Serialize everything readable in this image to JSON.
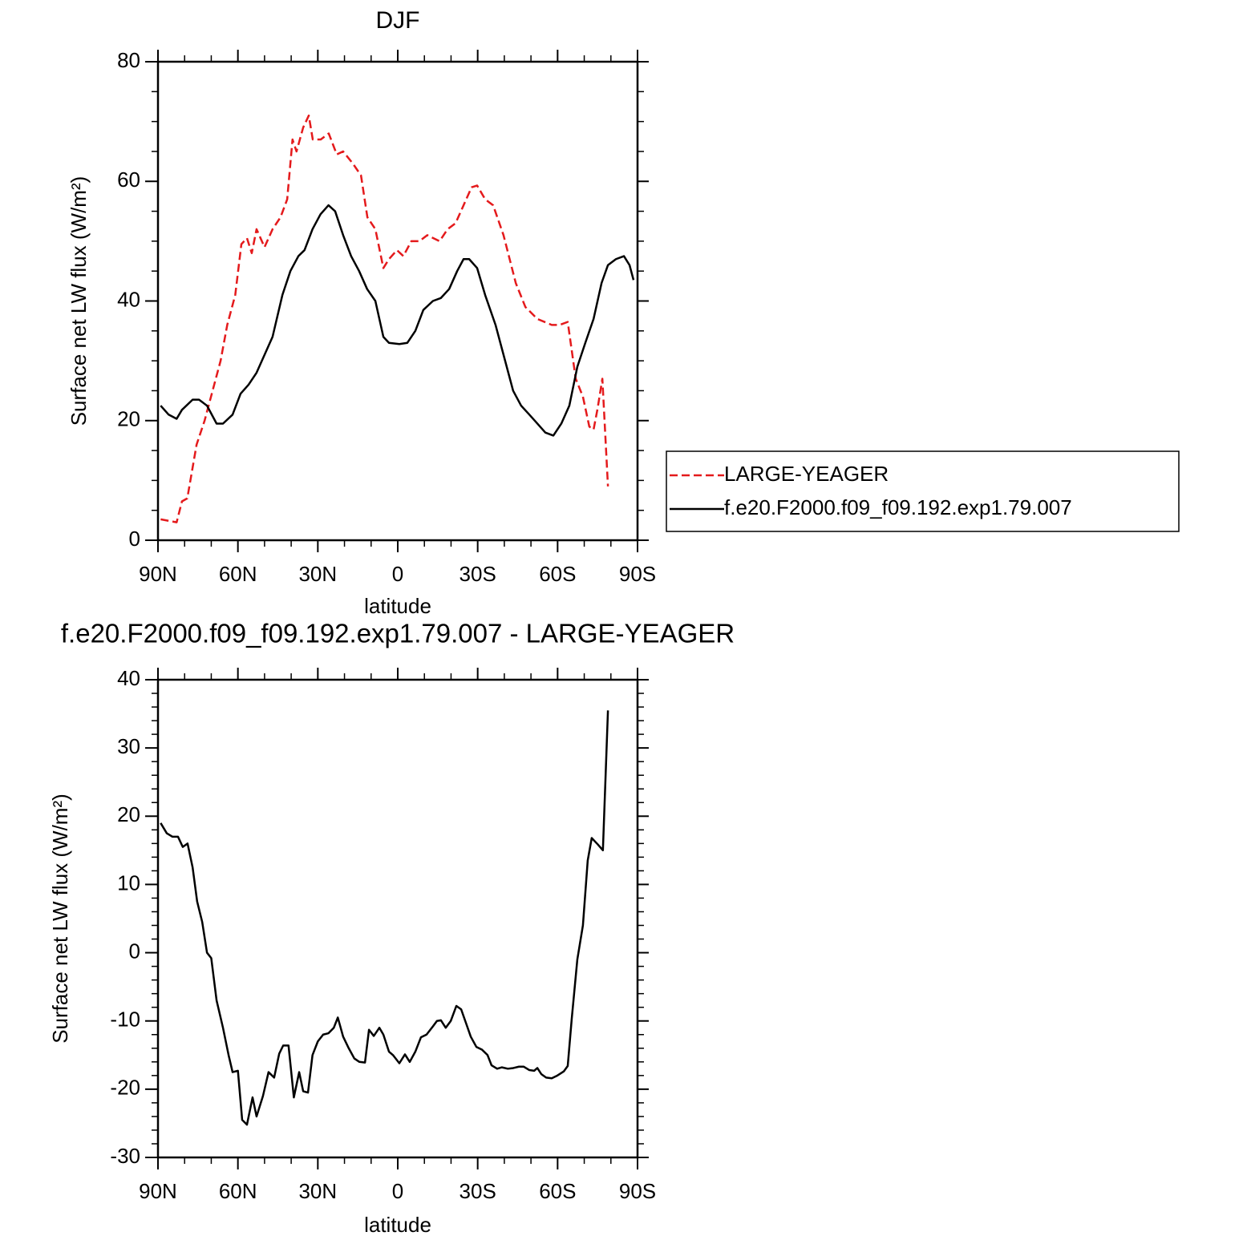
{
  "chart_data": [
    {
      "type": "line",
      "title": "DJF",
      "xlabel": "latitude",
      "ylabel": "Surface net LW flux (W/m²)",
      "xlim": [
        90,
        -90
      ],
      "xticks": [
        {
          "value": 90,
          "label": "90N"
        },
        {
          "value": 60,
          "label": "60N"
        },
        {
          "value": 30,
          "label": "30N"
        },
        0,
        {
          "value": -30,
          "label": "30S"
        },
        {
          "value": -60,
          "label": "60S"
        },
        {
          "value": -90,
          "label": "90S"
        }
      ],
      "ylim": [
        0,
        80
      ],
      "yticks": [
        0,
        20,
        40,
        60,
        80
      ],
      "legend": "right",
      "series": [
        {
          "name": "LARGE-YEAGER",
          "color": "#e41a1c",
          "dash": true,
          "x": [
            89,
            83,
            81,
            79,
            75.5,
            72.5,
            69.5,
            66.5,
            64,
            61,
            58.7,
            56.6,
            54.8,
            53,
            50,
            47,
            44,
            41.5,
            39.5,
            38,
            35.5,
            33.4,
            31.9,
            28.9,
            25.9,
            22.9,
            20.5,
            16.9,
            13.8,
            11.4,
            8.4,
            5.4,
            3.3,
            0.3,
            -2.1,
            -5.1,
            -8.1,
            -11.1,
            -15.7,
            -18.7,
            -21.7,
            -24.7,
            -27.7,
            -29.8,
            -32.8,
            -35.8,
            -39.7,
            -44.3,
            -47.9,
            -52.4,
            -57.8,
            -60.8,
            -63.8,
            -66.8,
            -69.5,
            -71.9,
            -73.5,
            -75,
            -76.8,
            -78.9
          ],
          "values": [
            3.5,
            3,
            6.5,
            7,
            16,
            20,
            25,
            30,
            36,
            41,
            49.5,
            50.5,
            48,
            52,
            49,
            52,
            54,
            57,
            67,
            65,
            69,
            71,
            67,
            67,
            68,
            64.5,
            65,
            63,
            61,
            54,
            52,
            45.5,
            47,
            48.5,
            47.5,
            50,
            50,
            51,
            50,
            52,
            53,
            56,
            59,
            59.3,
            57,
            56,
            51,
            43,
            39,
            37,
            36,
            36,
            36.5,
            27,
            24,
            19,
            18.5,
            22,
            27,
            9
          ]
        },
        {
          "name": "f.e20.F2000.f09_f09.192.exp1.79.007",
          "color": "#000000",
          "dash": false,
          "x": [
            89,
            86,
            83,
            81,
            77,
            74.6,
            71.6,
            68,
            65.6,
            62,
            59,
            56,
            53,
            50,
            47,
            43.3,
            40.3,
            37.3,
            35,
            32,
            29,
            26,
            23.5,
            20.5,
            17.5,
            14.5,
            11.5,
            8.4,
            5.4,
            3.3,
            -0.6,
            -3.6,
            -6.6,
            -9.6,
            -13.2,
            -16.2,
            -19.3,
            -22.3,
            -24.7,
            -26.8,
            -29.8,
            -32.8,
            -36.7,
            -40.3,
            -43.3,
            -46.3,
            -49.4,
            -52.4,
            -55.4,
            -58.4,
            -61.4,
            -64.4,
            -67.4,
            -70.4,
            -73.5,
            -76.5,
            -78.9,
            -81.9,
            -84.9,
            -87,
            -88.5
          ],
          "values": [
            22.5,
            21,
            20.3,
            21.8,
            23.5,
            23.5,
            22.5,
            19.5,
            19.5,
            21,
            24.5,
            26,
            28,
            31,
            34,
            41,
            45,
            47.5,
            48.5,
            52,
            54.5,
            56,
            55,
            51,
            47.5,
            45,
            42,
            40,
            34,
            33,
            32.8,
            33,
            35,
            38.5,
            40,
            40.5,
            42,
            45,
            47,
            47,
            45.5,
            41,
            36,
            30,
            25,
            22.5,
            21,
            19.5,
            18,
            17.5,
            19.5,
            22.5,
            29,
            33,
            37,
            43,
            46,
            47,
            47.5,
            46,
            43.5
          ]
        }
      ]
    },
    {
      "type": "line",
      "title": "f.e20.F2000.f09_f09.192.exp1.79.007 - LARGE-YEAGER",
      "xlabel": "latitude",
      "ylabel": "Surface net LW flux (W/m²)",
      "xlim": [
        90,
        -90
      ],
      "xticks": [
        {
          "value": 90,
          "label": "90N"
        },
        {
          "value": 60,
          "label": "60N"
        },
        {
          "value": 30,
          "label": "30N"
        },
        0,
        {
          "value": -30,
          "label": "30S"
        },
        {
          "value": -60,
          "label": "60S"
        },
        {
          "value": -90,
          "label": "90S"
        }
      ],
      "ylim": [
        -30,
        40
      ],
      "yticks": [
        -30,
        -20,
        -10,
        0,
        10,
        20,
        30,
        40
      ],
      "series": [
        {
          "color": "#000000",
          "dash": false,
          "x": [
            89,
            86.7,
            84.6,
            82.5,
            80.7,
            78.9,
            77,
            75.3,
            73.4,
            71.6,
            70,
            68,
            65.6,
            63.5,
            62,
            60,
            58.4,
            56.6,
            54.5,
            53,
            50.6,
            48.5,
            46.4,
            44.5,
            43,
            41,
            39,
            37,
            35.5,
            33.7,
            32,
            30,
            28,
            26,
            24,
            22.5,
            20.5,
            18.4,
            16.3,
            14.4,
            12.3,
            10.8,
            9,
            6.9,
            5.4,
            3.3,
            1.8,
            -0.6,
            -2.7,
            -4.5,
            -6.6,
            -8.7,
            -10.8,
            -13.2,
            -14.7,
            -16.2,
            -18,
            -19.9,
            -22,
            -23.8,
            -25.6,
            -27.4,
            -29.5,
            -31.6,
            -33.7,
            -35.2,
            -37.3,
            -39.1,
            -41.3,
            -43.4,
            -45.5,
            -47.3,
            -49.4,
            -51.2,
            -52.4,
            -53.9,
            -55.7,
            -57.8,
            -59.9,
            -62.3,
            -63.8,
            -65.3,
            -67.4,
            -69.5,
            -71.3,
            -72.8,
            -75,
            -77,
            -78.9
          ],
          "values": [
            19,
            17.5,
            17,
            17,
            15.5,
            16,
            12.5,
            7.5,
            4.5,
            0,
            -0.8,
            -7,
            -11,
            -15,
            -17.5,
            -17.3,
            -24.5,
            -25.2,
            -21.2,
            -24,
            -21,
            -17.5,
            -18.3,
            -14.8,
            -13.6,
            -13.6,
            -21.2,
            -17.5,
            -20.3,
            -20.5,
            -15,
            -13,
            -12,
            -11.8,
            -11,
            -9.5,
            -12.3,
            -14,
            -15.5,
            -16,
            -16.1,
            -11.3,
            -12.2,
            -11,
            -12,
            -14.5,
            -15,
            -16.2,
            -14.9,
            -16,
            -14.5,
            -12.4,
            -12,
            -10.8,
            -10,
            -9.9,
            -11,
            -10,
            -7.8,
            -8.3,
            -10.3,
            -12.3,
            -13.8,
            -14.2,
            -15,
            -16.5,
            -17,
            -16.8,
            -17,
            -16.9,
            -16.7,
            -16.7,
            -17.2,
            -17.3,
            -16.9,
            -17.8,
            -18.3,
            -18.4,
            -18,
            -17.4,
            -16.6,
            -9.7,
            -1,
            4,
            13.5,
            16.8,
            15.9,
            15,
            35.5
          ]
        }
      ]
    }
  ]
}
